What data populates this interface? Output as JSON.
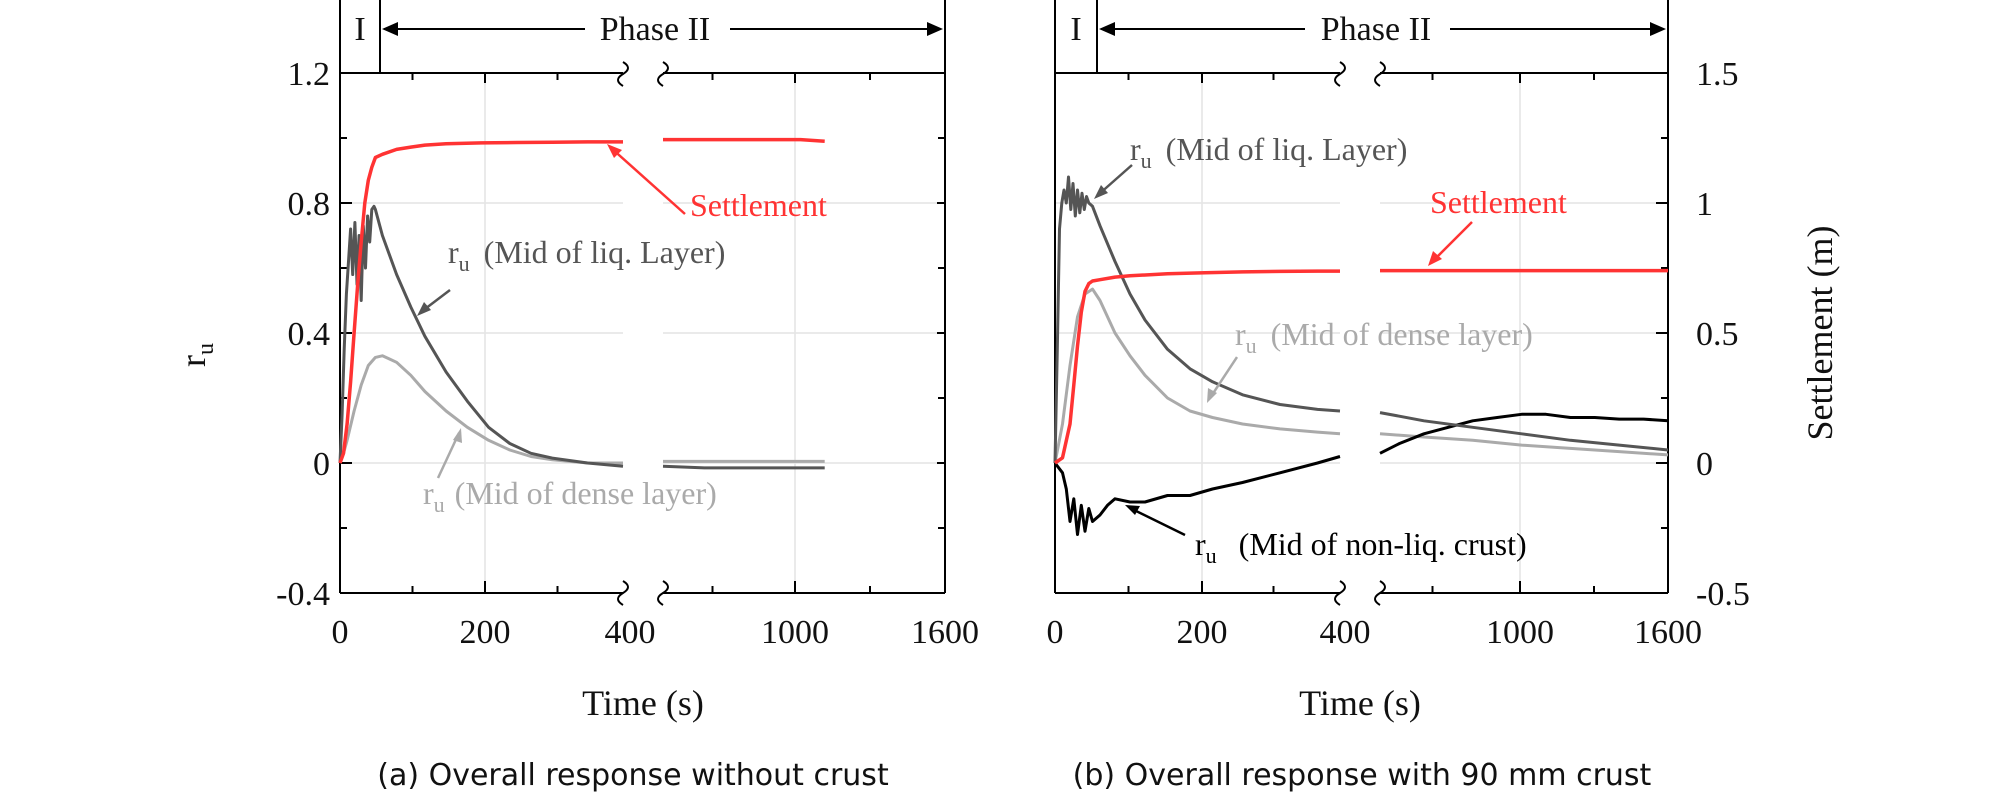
{
  "chart_data": [
    {
      "type": "line",
      "caption": "(a) Overall response without crust",
      "phase_labels": {
        "phase1": "I",
        "phase2": "Phase II"
      },
      "xlabel": "Time (s)",
      "x_ticks": [
        "0",
        "200",
        "400",
        "1000",
        "1600"
      ],
      "left_axis": {
        "label_main": "r",
        "label_sub": "u",
        "ylim": [
          -0.4,
          1.2
        ],
        "ticks": [
          "-0.4",
          "0",
          "0.4",
          "0.8",
          "1.2"
        ]
      },
      "colors": {
        "settlement": "#ff3333",
        "liq": "#555555",
        "dense": "#aaaaaa"
      },
      "annotations": {
        "settlement": "Settlement",
        "liq_main": "r",
        "liq_sub": "u",
        "liq_text": "(Mid of liq. Layer)",
        "dense_main": "r",
        "dense_sub": "u",
        "dense_text": "(Mid of dense layer)"
      },
      "series": [
        {
          "name": "Settlement",
          "axis": "left",
          "segment": 1,
          "x": [
            0,
            5,
            10,
            15,
            20,
            25,
            30,
            35,
            40,
            45,
            50,
            60,
            80,
            100,
            120,
            150,
            200,
            250,
            300,
            350,
            400
          ],
          "y": [
            0,
            0.03,
            0.12,
            0.25,
            0.4,
            0.55,
            0.68,
            0.8,
            0.87,
            0.91,
            0.94,
            0.95,
            0.965,
            0.972,
            0.978,
            0.982,
            0.985,
            0.986,
            0.987,
            0.988,
            0.988
          ]
        },
        {
          "name": "Settlement",
          "axis": "left",
          "segment": 2,
          "x": [
            428,
            600,
            800,
            1000,
            1100
          ],
          "y": [
            0.995,
            0.995,
            0.995,
            0.995,
            0.99
          ]
        },
        {
          "name": "ru (Mid of liq. Layer)",
          "axis": "left",
          "segment": 1,
          "x": [
            0,
            3,
            6,
            9,
            12,
            15,
            18,
            21,
            24,
            27,
            30,
            33,
            36,
            39,
            42,
            45,
            48,
            50,
            55,
            60,
            70,
            80,
            100,
            120,
            150,
            180,
            210,
            240,
            270,
            300,
            350,
            400
          ],
          "y": [
            0,
            0.15,
            0.35,
            0.52,
            0.62,
            0.72,
            0.58,
            0.74,
            0.55,
            0.7,
            0.5,
            0.73,
            0.6,
            0.76,
            0.68,
            0.78,
            0.79,
            0.78,
            0.74,
            0.7,
            0.64,
            0.58,
            0.48,
            0.39,
            0.28,
            0.19,
            0.11,
            0.06,
            0.03,
            0.015,
            0.0,
            -0.01
          ]
        },
        {
          "name": "ru (Mid of liq. Layer)",
          "axis": "left",
          "segment": 2,
          "x": [
            428,
            600,
            800,
            1000,
            1100
          ],
          "y": [
            -0.01,
            -0.015,
            -0.015,
            -0.015,
            -0.015
          ]
        },
        {
          "name": "ru (Mid of dense layer)",
          "axis": "left",
          "segment": 1,
          "x": [
            0,
            5,
            10,
            20,
            30,
            40,
            50,
            60,
            70,
            80,
            100,
            120,
            150,
            180,
            210,
            240,
            270,
            300,
            350,
            400
          ],
          "y": [
            0,
            0.03,
            0.07,
            0.16,
            0.24,
            0.3,
            0.325,
            0.33,
            0.32,
            0.31,
            0.27,
            0.22,
            0.16,
            0.11,
            0.07,
            0.04,
            0.02,
            0.01,
            0.0,
            0.0
          ]
        },
        {
          "name": "ru (Mid of dense layer)",
          "axis": "left",
          "segment": 2,
          "x": [
            428,
            600,
            800,
            1000,
            1100
          ],
          "y": [
            0.005,
            0.005,
            0.005,
            0.005,
            0.005
          ]
        }
      ]
    },
    {
      "type": "line",
      "caption": "(b) Overall response with 90 mm crust",
      "phase_labels": {
        "phase1": "I",
        "phase2": "Phase II"
      },
      "xlabel": "Time (s)",
      "x_ticks": [
        "0",
        "200",
        "400",
        "1000",
        "1600"
      ],
      "right_axis": {
        "label": "Settlement (m)",
        "ylim": [
          -0.5,
          1.5
        ],
        "ticks": [
          "-0.5",
          "0",
          "0.5",
          "1",
          "1.5"
        ]
      },
      "colors": {
        "settlement": "#ff3333",
        "liq": "#555555",
        "dense": "#aaaaaa",
        "crust": "#000000"
      },
      "annotations": {
        "settlement": "Settlement",
        "liq_main": "r",
        "liq_sub": "u",
        "liq_text": "(Mid of liq. Layer)",
        "dense_main": "r",
        "dense_sub": "u",
        "dense_text": "(Mid of dense layer)",
        "crust_main": "r",
        "crust_sub": "u",
        "crust_text": "(Mid of non-liq. crust)"
      },
      "series": [
        {
          "name": "Settlement",
          "axis": "right",
          "segment": 1,
          "x": [
            0,
            10,
            20,
            25,
            30,
            35,
            40,
            45,
            50,
            60,
            80,
            100,
            150,
            200,
            250,
            300,
            350,
            380
          ],
          "y": [
            0,
            0.02,
            0.15,
            0.3,
            0.45,
            0.58,
            0.66,
            0.69,
            0.7,
            0.705,
            0.715,
            0.72,
            0.728,
            0.732,
            0.735,
            0.737,
            0.738,
            0.738
          ]
        },
        {
          "name": "Settlement",
          "axis": "right",
          "segment": 2,
          "x": [
            420,
            600,
            800,
            1000,
            1200,
            1400,
            1600
          ],
          "y": [
            0.74,
            0.74,
            0.74,
            0.74,
            0.74,
            0.74,
            0.74
          ]
        },
        {
          "name": "ru (Mid of liq. Layer)",
          "axis": "left",
          "segment": 1,
          "x": [
            0,
            3,
            6,
            9,
            12,
            15,
            18,
            21,
            24,
            27,
            30,
            33,
            36,
            39,
            42,
            45,
            50,
            60,
            80,
            100,
            120,
            150,
            180,
            210,
            250,
            300,
            350,
            380
          ],
          "y": [
            0,
            0.35,
            0.72,
            0.8,
            0.84,
            0.8,
            0.88,
            0.78,
            0.86,
            0.76,
            0.84,
            0.77,
            0.83,
            0.78,
            0.82,
            0.8,
            0.79,
            0.73,
            0.62,
            0.52,
            0.44,
            0.35,
            0.29,
            0.25,
            0.21,
            0.18,
            0.165,
            0.16
          ]
        },
        {
          "name": "ru (Mid of liq. Layer)",
          "axis": "left",
          "segment": 2,
          "x": [
            420,
            600,
            800,
            1000,
            1200,
            1400,
            1600
          ],
          "y": [
            0.155,
            0.13,
            0.11,
            0.09,
            0.07,
            0.055,
            0.04
          ]
        },
        {
          "name": "ru (Mid of dense layer)",
          "axis": "left",
          "segment": 1,
          "x": [
            0,
            10,
            20,
            30,
            40,
            50,
            60,
            70,
            80,
            100,
            120,
            150,
            180,
            210,
            250,
            300,
            350,
            380
          ],
          "y": [
            0,
            0.12,
            0.3,
            0.45,
            0.52,
            0.535,
            0.5,
            0.45,
            0.4,
            0.33,
            0.27,
            0.2,
            0.16,
            0.14,
            0.12,
            0.105,
            0.095,
            0.09
          ]
        },
        {
          "name": "ru (Mid of dense layer)",
          "axis": "left",
          "segment": 2,
          "x": [
            420,
            600,
            800,
            1000,
            1200,
            1400,
            1600
          ],
          "y": [
            0.09,
            0.08,
            0.07,
            0.055,
            0.045,
            0.035,
            0.025
          ]
        },
        {
          "name": "ru (Mid of non-liq. crust)",
          "axis": "left",
          "segment": 1,
          "x": [
            0,
            10,
            15,
            20,
            25,
            30,
            35,
            40,
            45,
            50,
            60,
            70,
            80,
            100,
            120,
            150,
            180,
            210,
            250,
            300,
            350,
            380
          ],
          "y": [
            0,
            -0.03,
            -0.08,
            -0.18,
            -0.11,
            -0.22,
            -0.13,
            -0.21,
            -0.14,
            -0.18,
            -0.16,
            -0.13,
            -0.11,
            -0.12,
            -0.12,
            -0.1,
            -0.1,
            -0.08,
            -0.06,
            -0.03,
            0.0,
            0.02
          ]
        },
        {
          "name": "ru (Mid of non-liq. crust)",
          "axis": "left",
          "segment": 2,
          "x": [
            420,
            500,
            600,
            700,
            800,
            900,
            1000,
            1100,
            1200,
            1300,
            1400,
            1500,
            1600
          ],
          "y": [
            0.03,
            0.06,
            0.09,
            0.11,
            0.13,
            0.14,
            0.15,
            0.15,
            0.14,
            0.14,
            0.135,
            0.135,
            0.13
          ]
        }
      ]
    }
  ]
}
